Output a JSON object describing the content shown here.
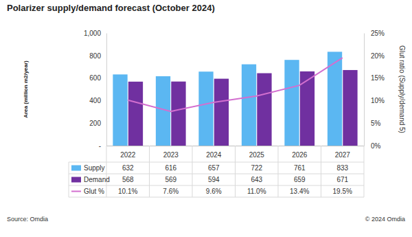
{
  "chart_data": {
    "type": "bar",
    "title": "Polarizer supply/demand forecast (October 2024)",
    "y_label": "Area (million m2/year)",
    "y2_label": "Glut ratio (Supply/demand 5)",
    "source": "Source: Omdia",
    "copyright": "© 2024 Omdia",
    "categories": [
      "2022",
      "2023",
      "2024",
      "2025",
      "2026",
      "2027"
    ],
    "series": [
      {
        "name": "Supply",
        "type": "bar",
        "color": "#5bb7f2",
        "values": [
          632,
          616,
          657,
          722,
          761,
          833
        ]
      },
      {
        "name": "Demand",
        "type": "bar",
        "color": "#7030a0",
        "values": [
          568,
          569,
          594,
          643,
          659,
          671
        ]
      },
      {
        "name": "Glut %",
        "type": "line",
        "axis": "y2",
        "color": "#d36fcf",
        "marker": "none",
        "line_style": "solid",
        "values": [
          10.1,
          7.6,
          9.6,
          11.0,
          13.4,
          19.5
        ],
        "value_labels": [
          "10.1%",
          "7.6%",
          "9.6%",
          "11.0%",
          "13.4%",
          "19.5%"
        ]
      }
    ],
    "ylim": [
      0,
      1000
    ],
    "yticks": [
      {
        "value": 0,
        "label": "-"
      },
      200,
      400,
      600,
      800,
      {
        "value": 1000,
        "label": "1,000"
      }
    ],
    "y2lim": [
      0,
      25
    ],
    "y2ticks": [
      {
        "value": 0,
        "label": "0%"
      },
      {
        "value": 5,
        "label": "5%"
      },
      {
        "value": 10,
        "label": "10%"
      },
      {
        "value": 15,
        "label": "15%"
      },
      {
        "value": 20,
        "label": "20%"
      },
      {
        "value": 25,
        "label": "25%"
      }
    ],
    "grid": false,
    "data_labels": true
  }
}
